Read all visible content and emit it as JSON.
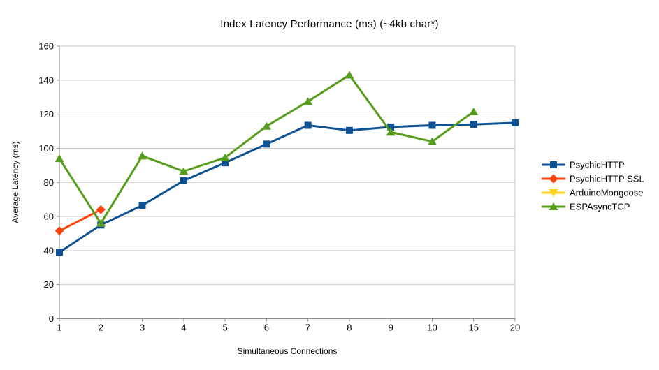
{
  "title": "Index Latency Performance (ms) (~4kb char*)",
  "chart_data": {
    "type": "line",
    "title": "Index Latency Performance (ms) (~4kb char*)",
    "xlabel": "Simultaneous Connections",
    "ylabel": "Average Latency (ms)",
    "categories": [
      "1",
      "2",
      "3",
      "4",
      "5",
      "6",
      "7",
      "8",
      "9",
      "10",
      "15",
      "20"
    ],
    "ylim": [
      0,
      160
    ],
    "ytick_step": 20,
    "grid": true,
    "legend_position": "right",
    "series": [
      {
        "name": "PsychicHTTP",
        "color": "#0E5293",
        "marker": "square",
        "values": [
          39,
          55,
          66.5,
          81,
          91.5,
          102.5,
          113.5,
          110.5,
          112.5,
          113.5,
          114,
          115
        ]
      },
      {
        "name": "PsychicHTTP SSL",
        "color": "#FF420E",
        "marker": "diamond",
        "values": [
          51.5,
          64
        ]
      },
      {
        "name": "ArduinoMongoose",
        "color": "#FFD320",
        "marker": "triangle-down",
        "values": []
      },
      {
        "name": "ESPAsyncTCP",
        "color": "#579D1C",
        "marker": "triangle-up",
        "values": [
          94,
          56,
          95.5,
          86.5,
          94.5,
          113,
          127.5,
          143,
          109.5,
          104,
          121.5
        ]
      }
    ]
  }
}
